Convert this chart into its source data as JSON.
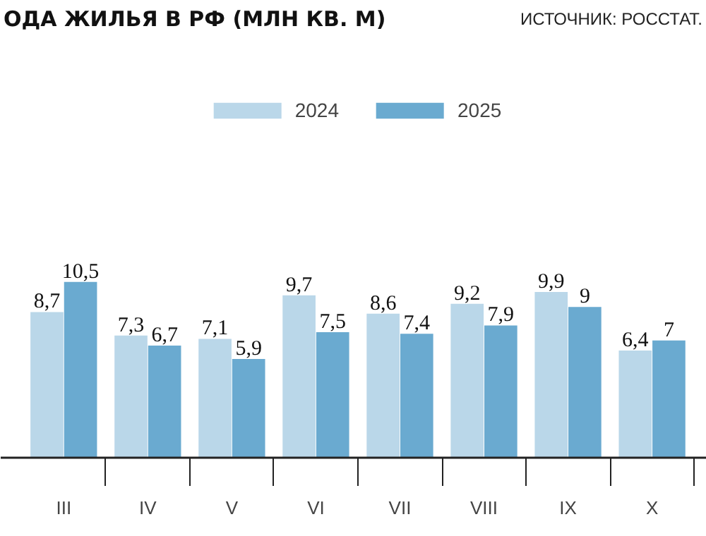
{
  "chart_data": {
    "type": "bar",
    "title": "ОДА ЖИЛЬЯ В РФ (МЛН КВ. М)",
    "annotations": [
      "ИСТОЧНИК: РОССТАТ."
    ],
    "categories": [
      "III",
      "IV",
      "V",
      "VI",
      "VII",
      "VIII",
      "IX",
      "X"
    ],
    "series": [
      {
        "name": "2024",
        "color": "#bad7e9",
        "values": [
          8.7,
          7.3,
          7.1,
          9.7,
          8.6,
          9.2,
          9.9,
          6.4
        ],
        "value_labels": [
          "8,7",
          "7,3",
          "7,1",
          "9,7",
          "8,6",
          "9,2",
          "9,9",
          "6,4"
        ]
      },
      {
        "name": "2025",
        "color": "#6aaad0",
        "values": [
          10.5,
          6.7,
          5.9,
          7.5,
          7.4,
          7.9,
          9,
          7
        ],
        "value_labels": [
          "10,5",
          "6,7",
          "5,9",
          "7,5",
          "7,4",
          "7,9",
          "9",
          "7"
        ]
      }
    ],
    "legend": "top",
    "grid": false
  }
}
